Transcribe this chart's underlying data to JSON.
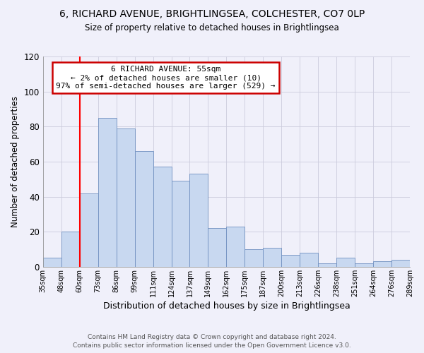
{
  "title_line1": "6, RICHARD AVENUE, BRIGHTLINGSEA, COLCHESTER, CO7 0LP",
  "title_line2": "Size of property relative to detached houses in Brightlingsea",
  "xlabel": "Distribution of detached houses by size in Brightlingsea",
  "ylabel": "Number of detached properties",
  "footer_line1": "Contains HM Land Registry data © Crown copyright and database right 2024.",
  "footer_line2": "Contains public sector information licensed under the Open Government Licence v3.0.",
  "categories": [
    "35sqm",
    "48sqm",
    "60sqm",
    "73sqm",
    "86sqm",
    "99sqm",
    "111sqm",
    "124sqm",
    "137sqm",
    "149sqm",
    "162sqm",
    "175sqm",
    "187sqm",
    "200sqm",
    "213sqm",
    "226sqm",
    "238sqm",
    "251sqm",
    "264sqm",
    "276sqm",
    "289sqm"
  ],
  "values": [
    5,
    20,
    42,
    85,
    79,
    66,
    57,
    49,
    53,
    22,
    23,
    10,
    11,
    7,
    8,
    2,
    5,
    2,
    3,
    4
  ],
  "bar_color": "#c8d8f0",
  "bar_edge_color": "#7090c0",
  "reference_line_color": "red",
  "ylim": [
    0,
    120
  ],
  "yticks": [
    0,
    20,
    40,
    60,
    80,
    100,
    120
  ],
  "annotation_title": "6 RICHARD AVENUE: 55sqm",
  "annotation_line1": "← 2% of detached houses are smaller (10)",
  "annotation_line2": "97% of semi-detached houses are larger (529) →",
  "annotation_box_color": "#ffffff",
  "annotation_box_edge": "#cc0000",
  "background_color": "#f0f0fa"
}
